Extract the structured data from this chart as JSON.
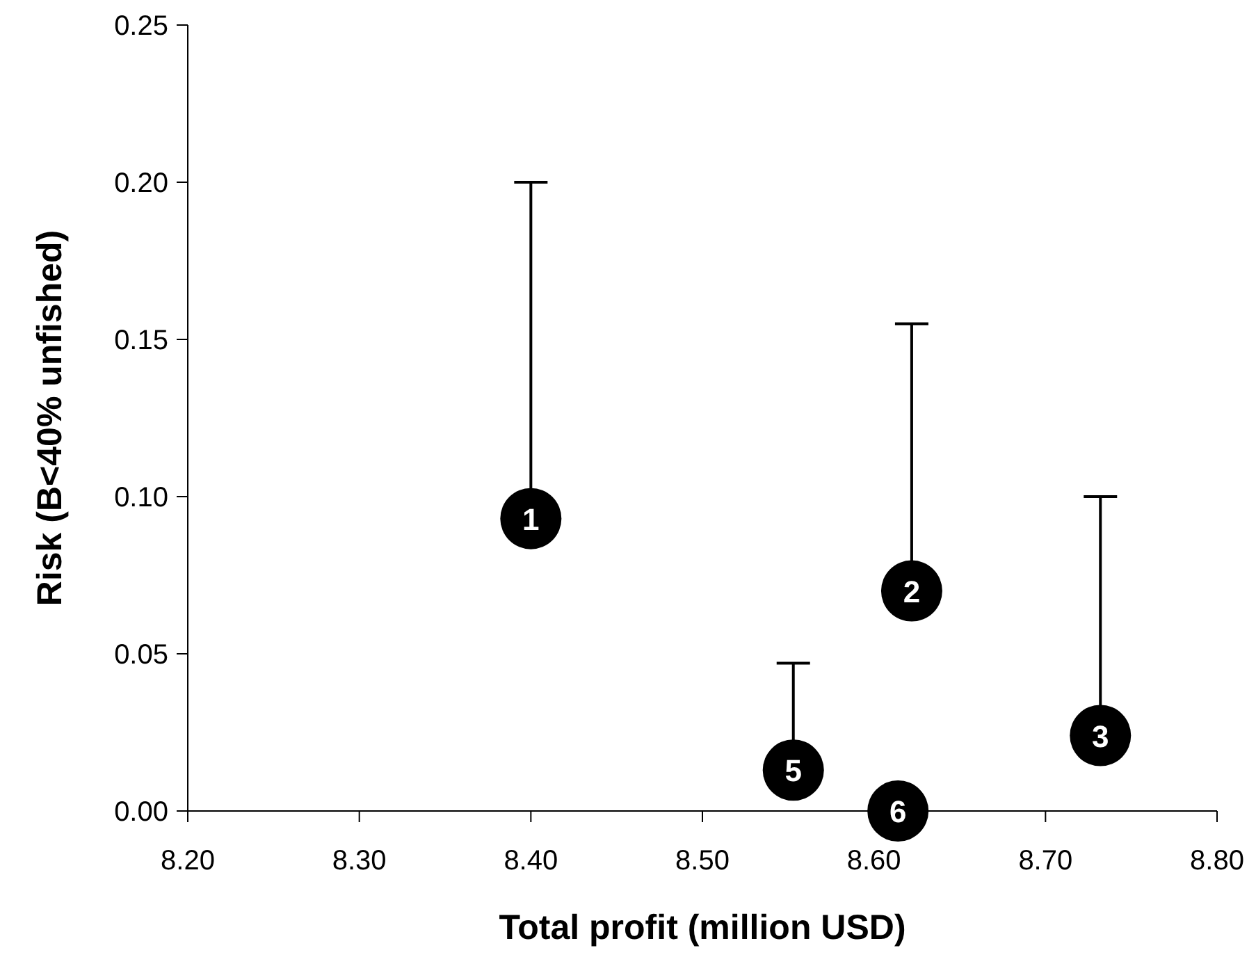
{
  "chart_data": {
    "type": "scatter",
    "xlabel": "Total profit (million USD)",
    "ylabel": "Risk (B<40% unfished)",
    "x": [
      8.4,
      8.622,
      8.732,
      8.553,
      8.614
    ],
    "values": [
      0.093,
      0.07,
      0.024,
      0.013,
      0.0
    ],
    "errors": [
      [
        0.093,
        0.2
      ],
      [
        0.07,
        0.155
      ],
      [
        0.024,
        0.1
      ],
      [
        0.013,
        0.047
      ],
      null
    ],
    "color": "#000000",
    "marker": "circle",
    "grid": false,
    "legend": false,
    "xlim": [
      8.2,
      8.8
    ],
    "xticks": [
      {
        "value": 8.2,
        "label": "8.20"
      },
      {
        "value": 8.3,
        "label": "8.30"
      },
      {
        "value": 8.4,
        "label": "8.40"
      },
      {
        "value": 8.5,
        "label": "8.50"
      },
      {
        "value": 8.6,
        "label": "8.60"
      },
      {
        "value": 8.7,
        "label": "8.70"
      },
      {
        "value": 8.8,
        "label": "8.80"
      }
    ],
    "ylim": [
      0,
      0.25
    ],
    "yticks": [
      {
        "value": 0,
        "label": "0.00"
      },
      {
        "value": 0.05,
        "label": "0.05"
      },
      {
        "value": 0.1,
        "label": "0.10"
      },
      {
        "value": 0.15,
        "label": "0.15"
      },
      {
        "value": 0.2,
        "label": "0.20"
      },
      {
        "value": 0.25,
        "label": "0.25"
      }
    ],
    "annotations": [
      {
        "text": "1",
        "x": 8.4,
        "y": 0.093
      },
      {
        "text": "2",
        "x": 8.622,
        "y": 0.07
      },
      {
        "text": "3",
        "x": 8.732,
        "y": 0.024
      },
      {
        "text": "5",
        "x": 8.553,
        "y": 0.013
      },
      {
        "text": "6",
        "x": 8.614,
        "y": 0.0
      }
    ]
  }
}
